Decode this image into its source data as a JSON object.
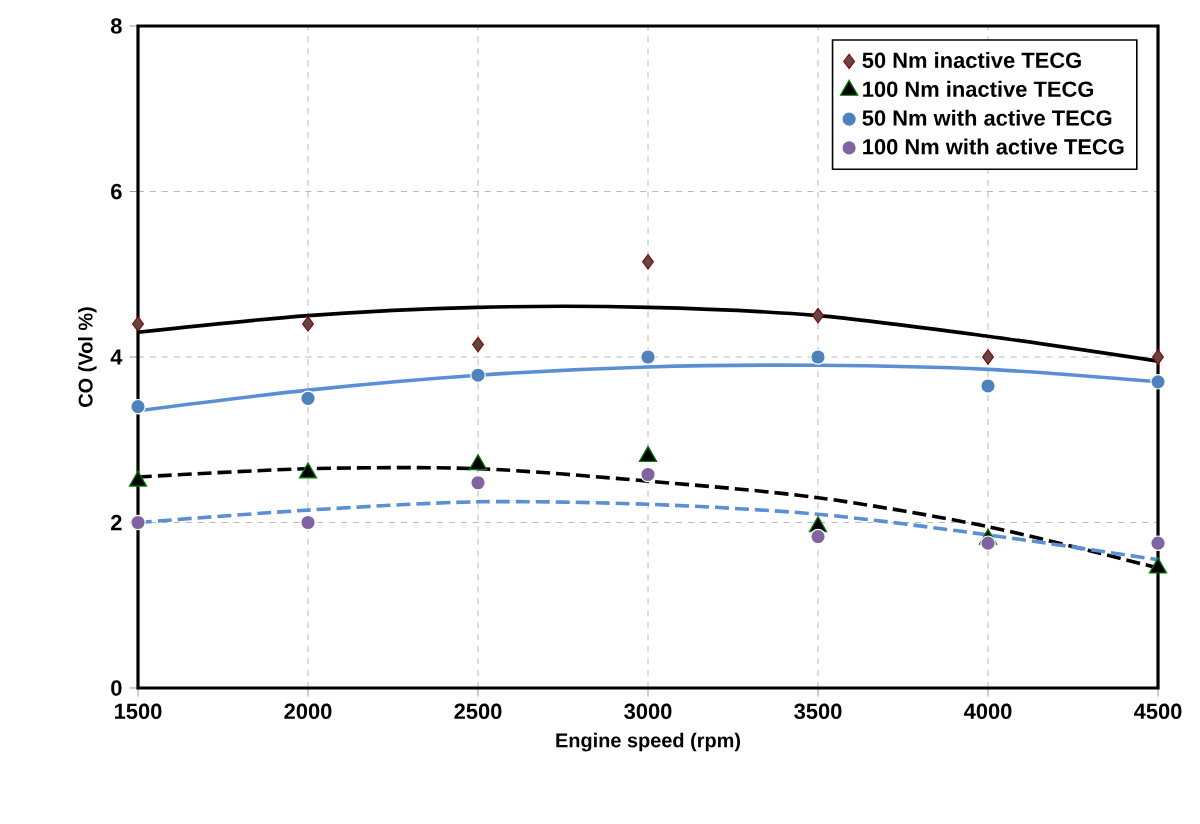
{
  "chart_data": {
    "type": "scatter",
    "xlabel": "Engine speed (rpm)",
    "ylabel": "CO (Vol %)",
    "xlim": [
      1500,
      4500
    ],
    "ylim": [
      0,
      8
    ],
    "xticks": [
      1500,
      2000,
      2500,
      3000,
      3500,
      4000,
      4500
    ],
    "yticks": [
      0,
      2,
      4,
      6,
      8
    ],
    "grid": true,
    "legend": "top right",
    "x": [
      1500,
      2000,
      2500,
      3000,
      3500,
      4000,
      4500
    ],
    "series": [
      {
        "type": "line",
        "color": "#000000",
        "line_style": "solid",
        "marker": "none",
        "values": [
          4.3,
          4.5,
          4.6,
          4.6,
          4.5,
          4.25,
          3.95
        ]
      },
      {
        "type": "line",
        "color": "#5b8fd4",
        "line_style": "solid",
        "marker": "none",
        "values": [
          3.35,
          3.6,
          3.78,
          3.88,
          3.9,
          3.85,
          3.7
        ]
      },
      {
        "type": "line",
        "color": "#000000",
        "line_style": "dashed",
        "marker": "none",
        "values": [
          2.55,
          2.65,
          2.65,
          2.5,
          2.3,
          1.95,
          1.45
        ]
      },
      {
        "type": "line",
        "color": "#5b8fd4",
        "line_style": "dashed",
        "marker": "none",
        "values": [
          2.0,
          2.15,
          2.25,
          2.22,
          2.1,
          1.85,
          1.55
        ]
      },
      {
        "name": "50 Nm inactive TECG",
        "color": "#5a4a48",
        "marker": "diamond",
        "values": [
          4.4,
          4.4,
          4.15,
          5.15,
          4.5,
          4.0,
          4.0
        ]
      },
      {
        "name": "100 Nm inactive TECG",
        "color": "#000000",
        "marker": "triangle",
        "values": [
          2.5,
          2.6,
          2.7,
          2.8,
          1.95,
          1.8,
          1.45
        ]
      },
      {
        "name": "50 Nm with active TECG",
        "color": "#4f81bd",
        "marker": "circle",
        "values": [
          3.4,
          3.5,
          3.78,
          4.0,
          4.0,
          3.65,
          3.7
        ]
      },
      {
        "name": "100 Nm with active TECG",
        "color": "#8064a2",
        "marker": "circle",
        "values": [
          2.0,
          2.0,
          2.48,
          2.58,
          1.83,
          1.75,
          1.75
        ]
      }
    ]
  }
}
